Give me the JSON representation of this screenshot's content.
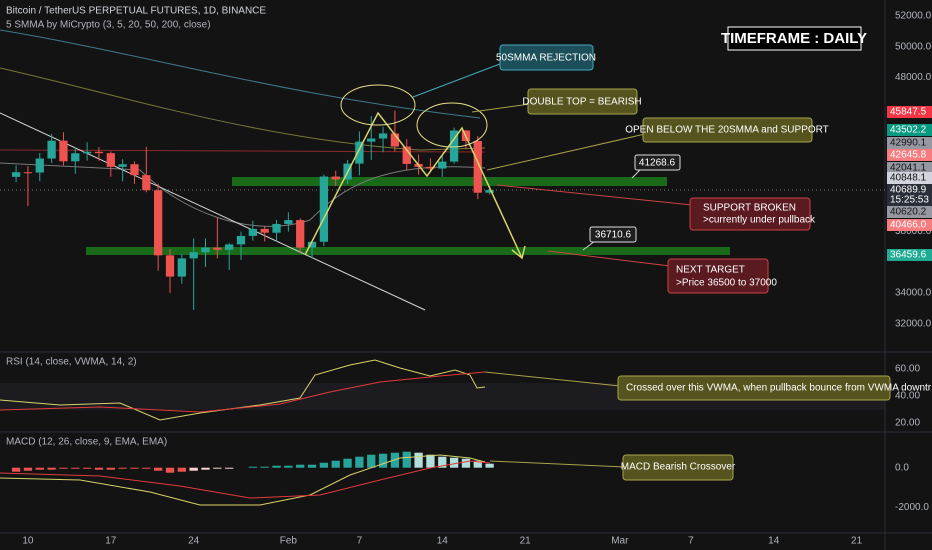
{
  "chart_data": {
    "type": "candlestick",
    "title": "Bitcoin / TetherUS PERPETUAL FUTURES, 1D, BINANCE",
    "subtitle": "5 SMMA by MiCrypto (3, 5, 20, 50, 200, close)",
    "x": [
      9,
      10,
      11,
      12,
      13,
      14,
      15,
      16,
      17,
      18,
      19,
      20,
      21,
      22,
      23,
      24,
      25,
      26,
      27,
      28,
      29,
      30,
      31,
      32,
      33,
      34,
      35,
      36,
      37,
      38,
      39,
      40,
      41,
      42,
      43,
      44,
      45,
      46,
      47,
      48,
      49
    ],
    "open": [
      41550,
      41850,
      41830,
      42740,
      43900,
      42560,
      43080,
      43180,
      43090,
      42200,
      42370,
      41660,
      40680,
      36450,
      35070,
      36250,
      36650,
      36950,
      36810,
      37160,
      37710,
      38170,
      37920,
      38490,
      38740,
      36950,
      37330,
      41570,
      41380,
      42410,
      43840,
      44040,
      44370,
      43520,
      42390,
      42200,
      42090,
      42540,
      44560,
      43880,
      40520
    ],
    "high": [
      42300,
      42250,
      43100,
      44350,
      44450,
      43450,
      43800,
      43480,
      43200,
      42700,
      42550,
      43500,
      41100,
      36850,
      36550,
      37550,
      37550,
      38900,
      37250,
      38000,
      38700,
      38350,
      38750,
      39250,
      38850,
      37400,
      41700,
      41950,
      42650,
      44500,
      45500,
      44800,
      45850,
      44000,
      43000,
      42750,
      42900,
      44750,
      44600,
      44200,
      40950
    ],
    "low": [
      41200,
      39650,
      41270,
      42450,
      42300,
      41750,
      42600,
      42600,
      41550,
      41250,
      41100,
      40550,
      35450,
      34000,
      34600,
      32900,
      35700,
      36250,
      35500,
      36150,
      37400,
      37350,
      37350,
      38000,
      36600,
      36250,
      37050,
      40950,
      41100,
      41650,
      42650,
      43150,
      43200,
      42000,
      41700,
      41850,
      41550,
      42400,
      43350,
      40100,
      40400
    ],
    "close": [
      41850,
      41830,
      42740,
      43900,
      42560,
      43080,
      43180,
      43090,
      42200,
      42370,
      41660,
      40680,
      36450,
      35070,
      36250,
      36650,
      36950,
      36810,
      37160,
      37710,
      38170,
      37920,
      38490,
      38740,
      36950,
      37330,
      41570,
      41380,
      42410,
      43840,
      44040,
      44370,
      43520,
      42390,
      42200,
      42090,
      42540,
      44560,
      43880,
      40520,
      40690
    ],
    "up_color": "#26a69a",
    "down_color": "#ef5350",
    "xlim": [
      7.64,
      82.4
    ],
    "xticks": [
      {
        "value": 10,
        "label": "10"
      },
      {
        "value": 17,
        "label": "17"
      },
      {
        "value": 24,
        "label": "24"
      },
      {
        "value": 32,
        "label": "Feb"
      },
      {
        "value": 38,
        "label": "7"
      },
      {
        "value": 45,
        "label": "14"
      },
      {
        "value": 52,
        "label": "21"
      },
      {
        "value": 60,
        "label": "Mar"
      },
      {
        "value": 66,
        "label": "7"
      },
      {
        "value": 73,
        "label": "14"
      },
      {
        "value": 80,
        "label": "21"
      }
    ],
    "ylim": [
      30300,
      53040
    ],
    "yticks": [
      {
        "value": 52000,
        "label": "52000.0"
      },
      {
        "value": 50000,
        "label": "50000.0"
      },
      {
        "value": 48000,
        "label": "48000.0"
      },
      {
        "value": 38000,
        "label": "38000.0"
      },
      {
        "value": 34000,
        "label": "34000.0"
      },
      {
        "value": 32000,
        "label": "32000.0"
      }
    ],
    "grid": false
  },
  "rsi": {
    "title": "RSI (14, close, VWMA, 14, 2)",
    "ylim": [
      13.3,
      72.6
    ],
    "yticks": [
      {
        "value": 60,
        "label": "60.00"
      },
      {
        "value": 40,
        "label": "40.00"
      },
      {
        "value": 20,
        "label": "20.00"
      }
    ]
  },
  "macd": {
    "title": "MACD (12, 26, close, 9, EMA, EMA)",
    "ylim": [
      -3282,
      1795
    ],
    "yticks": [
      {
        "value": 0,
        "label": "0.0"
      },
      {
        "value": -2000,
        "label": "-2000.0"
      }
    ]
  },
  "price_tags": [
    {
      "text": "45847.5",
      "color": "#f23645"
    },
    {
      "text": "43502.2",
      "color": "#089981"
    },
    {
      "text": "42990.1",
      "color": "#9598a1"
    },
    {
      "text": "42645.8",
      "color": "#f77c80"
    },
    {
      "text": "42041.1",
      "color": "#9598a1"
    },
    {
      "text": "40848.1",
      "color": "#d1d4dc"
    },
    {
      "text": "40689.9",
      "color": "#2a2e39"
    },
    {
      "text": "15:25:53",
      "color": "#2a2e39"
    },
    {
      "text": "40620.2",
      "color": "#9598a1"
    },
    {
      "text": "40466.0",
      "color": "#f77c80"
    },
    {
      "text": "36459.6",
      "color": "#22ab94"
    }
  ],
  "annotations": {
    "timeframe": "TIMEFRAME : DAILY",
    "rejection": "50SMMA REJECTION",
    "double_top": "DOUBLE TOP = BEARISH",
    "open_below": "OPEN BELOW THE 20SMMA and SUPPORT",
    "level_1": "41268.6",
    "support_broken": [
      "SUPPORT BROKEN",
      ">currently under pullback"
    ],
    "level_2": "36710.6",
    "next_target": [
      "NEXT TARGET",
      ">Price 36500 to 37000"
    ],
    "rsi_note": "Crossed over this VWMA, when pullback bounce from VWMA downtr",
    "macd_note": "MACD Bearish Crossover"
  }
}
